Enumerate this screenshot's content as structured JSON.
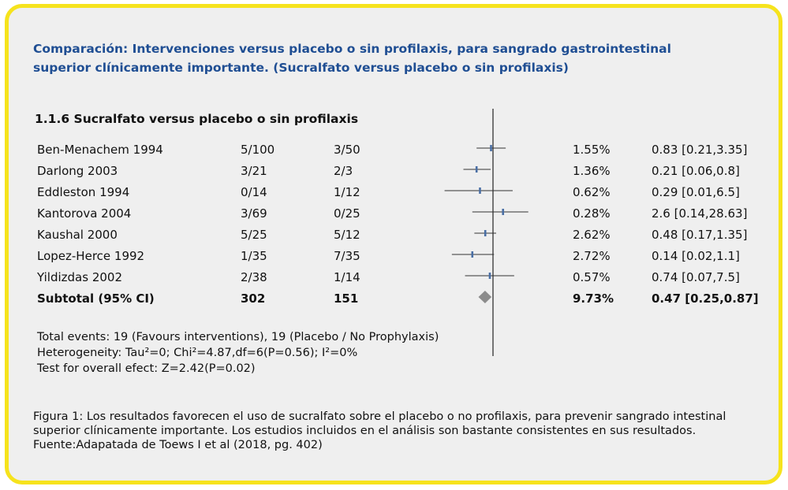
{
  "title_line1": "Comparación: Intervenciones versus placebo o sin profilaxis, para sangrado gastrointestinal",
  "title_line2": "superior clínicamente importante. (Sucralfato versus placebo o sin profilaxis)",
  "section_title": "1.1.6 Sucralfato versus placebo o sin profilaxis",
  "chart_data": {
    "type": "forest",
    "rows": [
      {
        "study": "Ben-Menachem 1994",
        "interv": "5/100",
        "control": "3/50",
        "weight": "1.55%",
        "ci_text": "0.83 [0.21,3.35]",
        "est": 0.83,
        "lo": 0.21,
        "hi": 3.35
      },
      {
        "study": "Darlong 2003",
        "interv": "3/21",
        "control": "2/3",
        "weight": "1.36%",
        "ci_text": "0.21 [0.06,0.8]",
        "est": 0.21,
        "lo": 0.06,
        "hi": 0.8
      },
      {
        "study": "Eddleston 1994",
        "interv": "0/14",
        "control": "1/12",
        "weight": "0.62%",
        "ci_text": "0.29 [0.01,6.5]",
        "est": 0.29,
        "lo": 0.01,
        "hi": 6.5
      },
      {
        "study": "Kantorova 2004",
        "interv": "3/69",
        "control": "0/25",
        "weight": "0.28%",
        "ci_text": "2.6 [0.14,28.63]",
        "est": 2.6,
        "lo": 0.14,
        "hi": 28.63
      },
      {
        "study": "Kaushal 2000",
        "interv": "5/25",
        "control": "5/12",
        "weight": "2.62%",
        "ci_text": "0.48 [0.17,1.35]",
        "est": 0.48,
        "lo": 0.17,
        "hi": 1.35
      },
      {
        "study": "Lopez-Herce 1992",
        "interv": "1/35",
        "control": "7/35",
        "weight": "2.72%",
        "ci_text": "0.14 [0.02,1.1]",
        "est": 0.14,
        "lo": 0.02,
        "hi": 1.1
      },
      {
        "study": "Yildizdas 2002",
        "interv": "2/38",
        "control": "1/14",
        "weight": "0.57%",
        "ci_text": "0.74 [0.07,7.5]",
        "est": 0.74,
        "lo": 0.07,
        "hi": 7.5
      }
    ],
    "subtotal": {
      "label": "Subtotal (95% CI)",
      "interv": "302",
      "control": "151",
      "weight": "9.73%",
      "ci_text": "0.47 [0.25,0.87]",
      "est": 0.47,
      "lo": 0.25,
      "hi": 0.87
    },
    "x_scale": "log",
    "xlim": [
      0.005,
      100
    ],
    "reference_line": 1
  },
  "footnotes": {
    "events": "Total events: 19 (Favours interventions), 19 (Placebo / No Prophylaxis)",
    "heterogeneity": "Heterogeneity: Tau²=0; Chi²=4.87,df=6(P=0.56); I²=0%",
    "overall": "Test for overall efect: Z=2.42(P=0.02)"
  },
  "caption": {
    "line1": "Figura 1: Los resultados favorecen el uso de sucralfato sobre el placebo o no profilaxis, para prevenir sangrado intestinal",
    "line2": "superior clínicamente importante. Los estudios incluidos en el análisis son bastante consistentes en sus resultados.",
    "line3": "Fuente:Adapatada de Toews I et al (2018, pg. 402)"
  },
  "colors": {
    "frame": "#f6e31d",
    "panel": "#efefef",
    "title": "#1f4e93",
    "point": "#4a6fa5",
    "diamond": "#8c8c8c"
  }
}
